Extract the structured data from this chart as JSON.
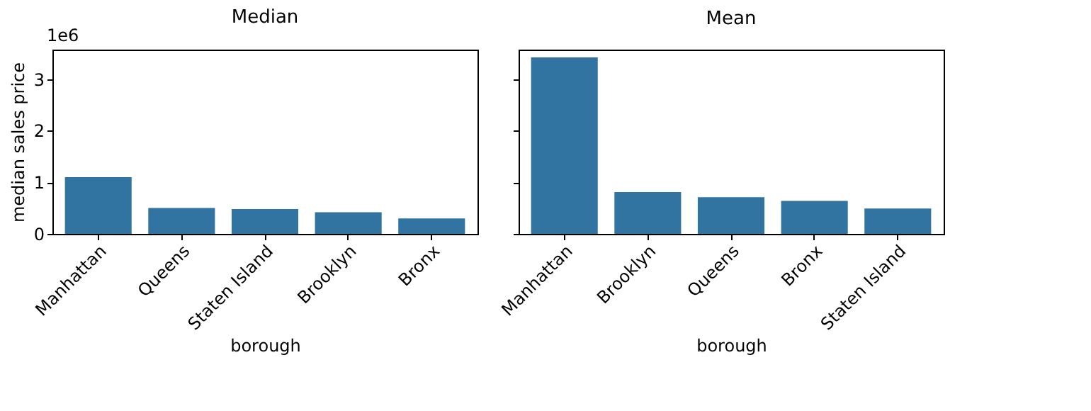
{
  "chart_data": [
    {
      "type": "bar",
      "title": "Median",
      "xlabel": "borough",
      "ylabel": "median sales price",
      "categories": [
        "Manhattan",
        "Queens",
        "Staten Island",
        "Brooklyn",
        "Bronx"
      ],
      "values": [
        1.1,
        0.5,
        0.48,
        0.42,
        0.3
      ],
      "color": "#3274a1",
      "ylim": [
        0,
        3.57
      ],
      "yticks": [
        0,
        1,
        2,
        3
      ],
      "grid": false,
      "annotations": [
        "1e6"
      ]
    },
    {
      "type": "bar",
      "title": "Mean",
      "xlabel": "borough",
      "categories": [
        "Manhattan",
        "Brooklyn",
        "Queens",
        "Bronx",
        "Staten Island"
      ],
      "values": [
        3.42,
        0.81,
        0.71,
        0.64,
        0.49
      ],
      "color": "#3274a1",
      "ylim": [
        0,
        3.57
      ],
      "yticks": [
        0,
        1,
        2,
        3
      ],
      "grid": false,
      "tick_labels": "x"
    }
  ]
}
